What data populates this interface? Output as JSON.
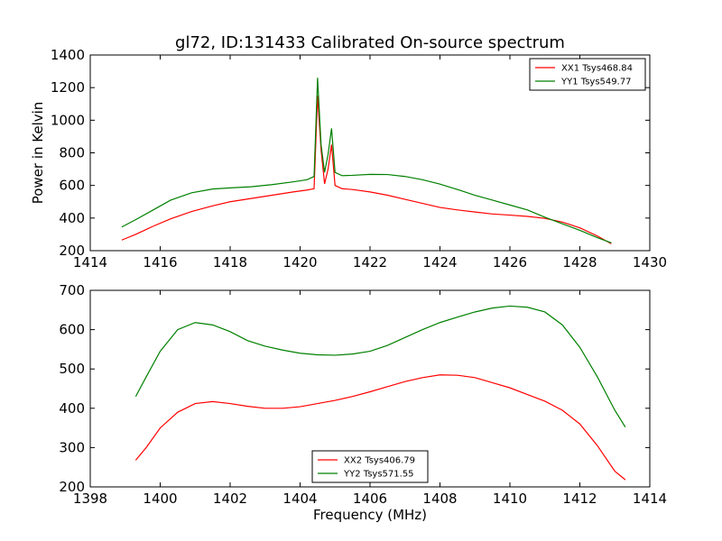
{
  "figure": {
    "title": "gl72, ID:131433 Calibrated On-source spectrum"
  },
  "chart_data": [
    {
      "type": "line",
      "title": "gl72, ID:131433 Calibrated On-source spectrum",
      "xlabel": "",
      "ylabel": "Power in Kelvin",
      "xlim": [
        1414,
        1430
      ],
      "ylim": [
        200,
        1400
      ],
      "xticks": [
        1414,
        1416,
        1418,
        1420,
        1422,
        1424,
        1426,
        1428,
        1430
      ],
      "yticks": [
        200,
        400,
        600,
        800,
        1000,
        1200,
        1400
      ],
      "legend_position": "top-right",
      "grid": false,
      "series": [
        {
          "name": "XX1 Tsys468.84",
          "color": "#ff0000",
          "points": [
            [
              1414.9,
              265
            ],
            [
              1415.3,
              300
            ],
            [
              1415.8,
              350
            ],
            [
              1416.3,
              395
            ],
            [
              1416.9,
              440
            ],
            [
              1417.5,
              475
            ],
            [
              1418,
              500
            ],
            [
              1418.6,
              520
            ],
            [
              1419.2,
              540
            ],
            [
              1419.8,
              560
            ],
            [
              1420.2,
              572
            ],
            [
              1420.4,
              580
            ],
            [
              1420.5,
              1150
            ],
            [
              1420.6,
              820
            ],
            [
              1420.7,
              610
            ],
            [
              1420.8,
              700
            ],
            [
              1420.9,
              850
            ],
            [
              1421,
              600
            ],
            [
              1421.2,
              580
            ],
            [
              1421.5,
              575
            ],
            [
              1422,
              560
            ],
            [
              1422.5,
              540
            ],
            [
              1423,
              515
            ],
            [
              1423.5,
              490
            ],
            [
              1424,
              465
            ],
            [
              1424.5,
              450
            ],
            [
              1425,
              437
            ],
            [
              1425.5,
              425
            ],
            [
              1426,
              418
            ],
            [
              1426.5,
              410
            ],
            [
              1427,
              398
            ],
            [
              1427.5,
              375
            ],
            [
              1428,
              340
            ],
            [
              1428.5,
              290
            ],
            [
              1428.9,
              242
            ]
          ]
        },
        {
          "name": "YY1 Tsys549.77",
          "color": "#008000",
          "points": [
            [
              1414.9,
              345
            ],
            [
              1415.3,
              390
            ],
            [
              1415.8,
              450
            ],
            [
              1416.3,
              510
            ],
            [
              1416.9,
              555
            ],
            [
              1417.5,
              578
            ],
            [
              1418,
              585
            ],
            [
              1418.6,
              592
            ],
            [
              1419.2,
              605
            ],
            [
              1419.8,
              622
            ],
            [
              1420.2,
              635
            ],
            [
              1420.4,
              655
            ],
            [
              1420.5,
              1260
            ],
            [
              1420.6,
              850
            ],
            [
              1420.7,
              680
            ],
            [
              1420.8,
              790
            ],
            [
              1420.9,
              950
            ],
            [
              1421,
              680
            ],
            [
              1421.2,
              660
            ],
            [
              1421.5,
              662
            ],
            [
              1422,
              668
            ],
            [
              1422.5,
              667
            ],
            [
              1423,
              655
            ],
            [
              1423.5,
              635
            ],
            [
              1424,
              608
            ],
            [
              1424.5,
              575
            ],
            [
              1425,
              540
            ],
            [
              1425.5,
              510
            ],
            [
              1426,
              480
            ],
            [
              1426.5,
              450
            ],
            [
              1427,
              405
            ],
            [
              1427.5,
              365
            ],
            [
              1428,
              325
            ],
            [
              1428.5,
              280
            ],
            [
              1428.9,
              248
            ]
          ]
        }
      ]
    },
    {
      "type": "line",
      "title": "",
      "xlabel": "Frequency (MHz)",
      "ylabel": "",
      "xlim": [
        1398,
        1414
      ],
      "ylim": [
        200,
        700
      ],
      "xticks": [
        1398,
        1400,
        1402,
        1404,
        1406,
        1408,
        1410,
        1412,
        1414
      ],
      "yticks": [
        200,
        300,
        400,
        500,
        600,
        700
      ],
      "legend_position": "bottom-center",
      "grid": false,
      "series": [
        {
          "name": "XX2 Tsys406.79",
          "color": "#ff0000",
          "points": [
            [
              1399.3,
              268
            ],
            [
              1399.6,
              300
            ],
            [
              1400,
              350
            ],
            [
              1400.5,
              390
            ],
            [
              1401,
              412
            ],
            [
              1401.5,
              417
            ],
            [
              1402,
              412
            ],
            [
              1402.5,
              405
            ],
            [
              1403,
              400
            ],
            [
              1403.5,
              400
            ],
            [
              1404,
              404
            ],
            [
              1404.5,
              412
            ],
            [
              1405,
              420
            ],
            [
              1405.5,
              430
            ],
            [
              1406,
              442
            ],
            [
              1406.5,
              455
            ],
            [
              1407,
              468
            ],
            [
              1407.5,
              478
            ],
            [
              1408,
              485
            ],
            [
              1408.5,
              484
            ],
            [
              1409,
              478
            ],
            [
              1409.5,
              465
            ],
            [
              1410,
              452
            ],
            [
              1410.5,
              435
            ],
            [
              1411,
              418
            ],
            [
              1411.5,
              395
            ],
            [
              1412,
              360
            ],
            [
              1412.5,
              305
            ],
            [
              1413,
              240
            ],
            [
              1413.3,
              218
            ]
          ]
        },
        {
          "name": "YY2 Tsys571.55",
          "color": "#008000",
          "points": [
            [
              1399.3,
              430
            ],
            [
              1399.6,
              480
            ],
            [
              1400,
              545
            ],
            [
              1400.5,
              600
            ],
            [
              1401,
              618
            ],
            [
              1401.5,
              612
            ],
            [
              1402,
              595
            ],
            [
              1402.5,
              572
            ],
            [
              1403,
              558
            ],
            [
              1403.5,
              548
            ],
            [
              1404,
              540
            ],
            [
              1404.5,
              536
            ],
            [
              1405,
              535
            ],
            [
              1405.5,
              538
            ],
            [
              1406,
              545
            ],
            [
              1406.5,
              560
            ],
            [
              1407,
              580
            ],
            [
              1407.5,
              600
            ],
            [
              1408,
              618
            ],
            [
              1408.5,
              632
            ],
            [
              1409,
              645
            ],
            [
              1409.5,
              655
            ],
            [
              1410,
              660
            ],
            [
              1410.5,
              657
            ],
            [
              1411,
              645
            ],
            [
              1411.5,
              612
            ],
            [
              1412,
              555
            ],
            [
              1412.5,
              480
            ],
            [
              1413,
              395
            ],
            [
              1413.3,
              352
            ]
          ]
        }
      ]
    }
  ]
}
